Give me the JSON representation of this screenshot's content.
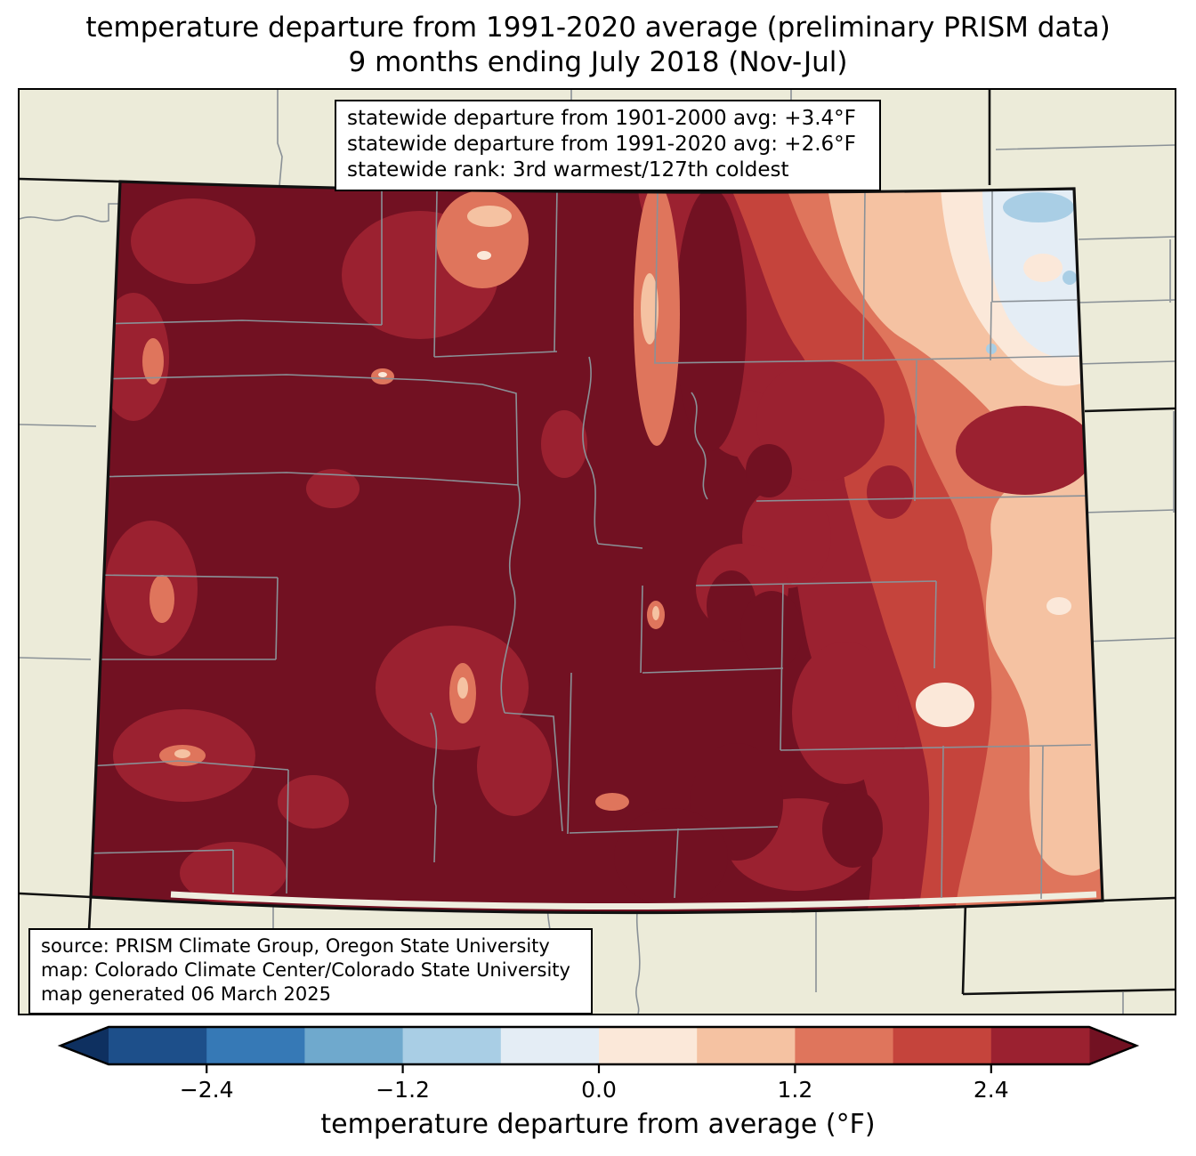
{
  "title": {
    "line1": "temperature departure from 1991-2020 average (preliminary PRISM data)",
    "line2": "9 months ending July 2018 (Nov-Jul)"
  },
  "stats_box": {
    "line1": "statewide departure from 1901-2000 avg: +3.4°F",
    "line2": "statewide departure from 1991-2020 avg: +2.6°F",
    "line3": "statewide rank: 3rd warmest/127th coldest"
  },
  "source_box": {
    "line1": "source: PRISM Climate Group, Oregon State University",
    "line2": "map: Colorado Climate Center/Colorado State University",
    "line3": "map generated 06 March 2025"
  },
  "colorbar": {
    "label": "temperature departure from average (°F)",
    "range_min": -3.0,
    "range_max": 3.0,
    "level_step": 0.6,
    "ticks": [
      {
        "value": -2.4,
        "label": "−2.4"
      },
      {
        "value": -1.2,
        "label": "−1.2"
      },
      {
        "value": 0.0,
        "label": "0.0"
      },
      {
        "value": 1.2,
        "label": "1.2"
      },
      {
        "value": 2.4,
        "label": "2.4"
      }
    ],
    "segment_classes": [
      "cm30",
      "cm24",
      "cm18",
      "cm12",
      "cm06",
      "c00",
      "c06",
      "c12",
      "c18",
      "c24"
    ],
    "under_arrow_class": "ltm30",
    "over_arrow_class": "gt3"
  },
  "palette": {
    "ltm30": "#0e3060",
    "cm30": "#1d4f8a",
    "cm24": "#3679b6",
    "cm18": "#6fa9cd",
    "cm12": "#a9cee5",
    "cm06": "#e4edf5",
    "c00": "#fbe8d9",
    "c06": "#f5c2a2",
    "c12": "#df755c",
    "c18": "#c5443c",
    "c24": "#9b2130",
    "gt3": "#721122"
  },
  "class_ranges": {
    "ltm30": "below −3.0°F",
    "cm30": "−3.0 to −2.4°F",
    "cm24": "−2.4 to −1.8°F",
    "cm18": "−1.8 to −1.2°F",
    "cm12": "−1.2 to −0.6°F",
    "cm06": "−0.6 to 0.0°F",
    "c00": "0.0 to 0.6°F",
    "c06": "0.6 to 1.2°F",
    "c12": "1.2 to 1.8°F",
    "c18": "1.8 to 2.4°F",
    "c24": "2.4 to 3.0°F",
    "gt3": "above 3.0°F"
  },
  "map": {
    "background": "#ecebd9",
    "county_line": "#8a9197",
    "state_line": "#111111",
    "data_gap": "#efeee0"
  }
}
